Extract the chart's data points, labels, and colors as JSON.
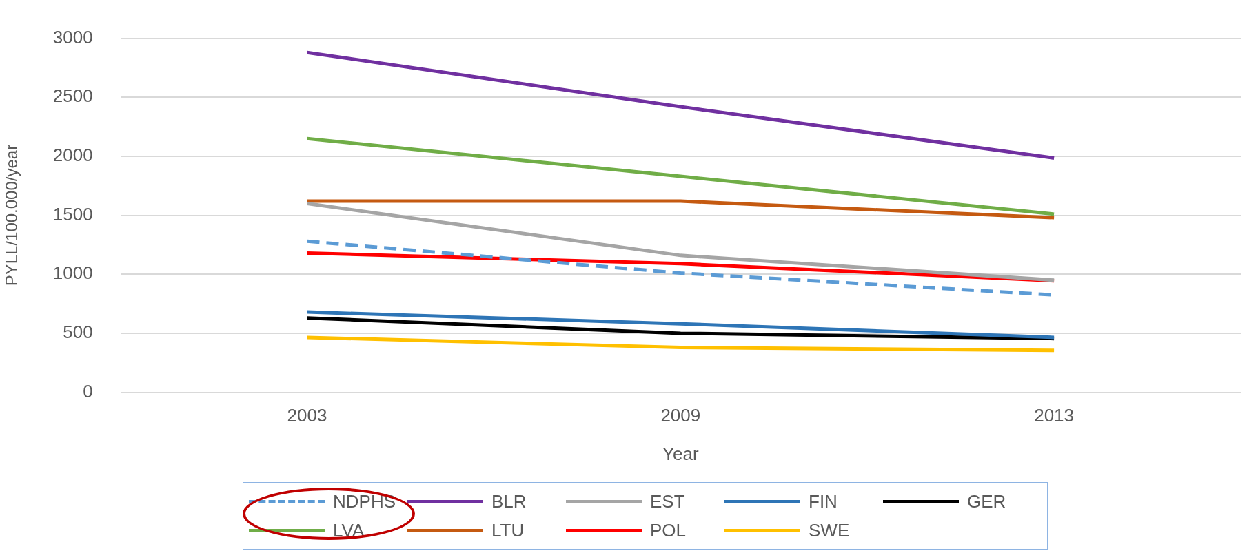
{
  "chart_data": {
    "type": "line",
    "xlabel": "Year",
    "ylabel": "PYLL/100.000/year",
    "categories": [
      "2003",
      "2009",
      "2013"
    ],
    "ylim": [
      0,
      3000
    ],
    "yticks": [
      0,
      500,
      1000,
      1500,
      2000,
      2500,
      3000
    ],
    "grid": "y",
    "legend": "bottom",
    "marker": "none",
    "series": [
      {
        "name": "NDPHS",
        "color": "#5b9bd5",
        "values": [
          1280,
          1010,
          825
        ],
        "line_style": "dashed"
      },
      {
        "name": "BLR",
        "color": "#7030a0",
        "values": [
          2880,
          2420,
          1985
        ]
      },
      {
        "name": "EST",
        "color": "#a5a5a5",
        "values": [
          1600,
          1160,
          950
        ]
      },
      {
        "name": "FIN",
        "color": "#2e75b6",
        "values": [
          680,
          580,
          465
        ]
      },
      {
        "name": "GER",
        "color": "#000000",
        "values": [
          630,
          500,
          455
        ]
      },
      {
        "name": "LVA",
        "color": "#70ad47",
        "values": [
          2150,
          1830,
          1510
        ]
      },
      {
        "name": "LTU",
        "color": "#c55a11",
        "values": [
          1620,
          1620,
          1480
        ]
      },
      {
        "name": "POL",
        "color": "#ff0000",
        "values": [
          1180,
          1090,
          945
        ]
      },
      {
        "name": "SWE",
        "color": "#ffc000",
        "values": [
          465,
          380,
          355
        ]
      }
    ]
  }
}
